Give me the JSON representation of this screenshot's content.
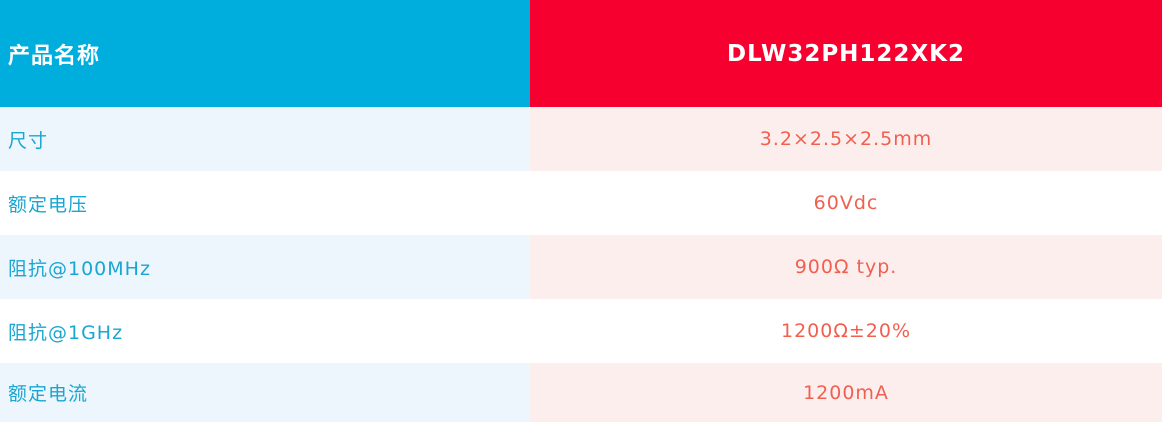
{
  "header": {
    "label": "产品名称",
    "value": "DLW32PH122XK2"
  },
  "rows": [
    {
      "label": "尺寸",
      "value": "3.2×2.5×2.5mm"
    },
    {
      "label": "额定电压",
      "value": "60Vdc"
    },
    {
      "label": "阻抗@100MHz",
      "value": "900Ω typ."
    },
    {
      "label": "阻抗@1GHz",
      "value": "1200Ω±20%"
    },
    {
      "label": "额定电流",
      "value": "1200mA"
    }
  ],
  "colors": {
    "header_left": "#00AEDD",
    "header_right": "#F5002F",
    "label_text": "#1aa6d2",
    "value_text": "#f06050"
  }
}
